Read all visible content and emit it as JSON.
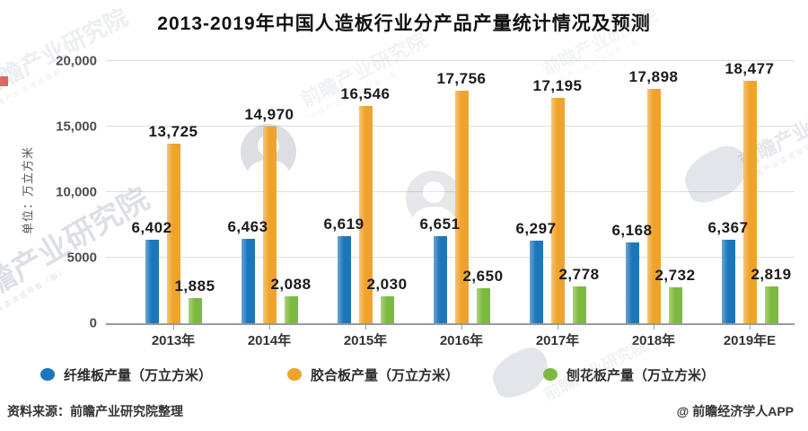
{
  "title": "2013-2019年中国人造板行业分产品产量统计情况及预测",
  "y_axis": {
    "title": "单位：万立方米",
    "ticks": [
      {
        "value": 0,
        "label": "0"
      },
      {
        "value": 5000,
        "label": "5000"
      },
      {
        "value": 10000,
        "label": "10,000"
      },
      {
        "value": 15000,
        "label": "15,000"
      },
      {
        "value": 20000,
        "label": "20,000"
      }
    ]
  },
  "chart_data": {
    "type": "bar",
    "title": "2013-2019年中国人造板行业分产品产量统计情况及预测",
    "ylabel": "单位：万立方米",
    "ylim": [
      0,
      20000
    ],
    "grid": true,
    "legend_position": "bottom",
    "categories": [
      "2013年",
      "2014年",
      "2015年",
      "2016年",
      "2017年",
      "2018年",
      "2019年E"
    ],
    "series": [
      {
        "name": "纤维板产量（万立方米）",
        "color": "#1B76BC",
        "values": [
          6402,
          6463,
          6619,
          6651,
          6297,
          6168,
          6367
        ]
      },
      {
        "name": "胶合板产量（万立方米）",
        "color": "#F0A32B",
        "values": [
          13725,
          14970,
          16546,
          17756,
          17195,
          17898,
          18477
        ]
      },
      {
        "name": "刨花板产量（万立方米）",
        "color": "#7CBA3F",
        "values": [
          1885,
          2088,
          2030,
          2650,
          2778,
          2732,
          2819
        ]
      }
    ]
  },
  "footer": {
    "source": "资料来源：前瞻产业研究院整理",
    "credit": "@ 前瞻经济学人APP"
  },
  "watermark": {
    "brand_text": "前瞻产业研究院",
    "brand_subtext": "中国产业咨询领导者（股）"
  }
}
